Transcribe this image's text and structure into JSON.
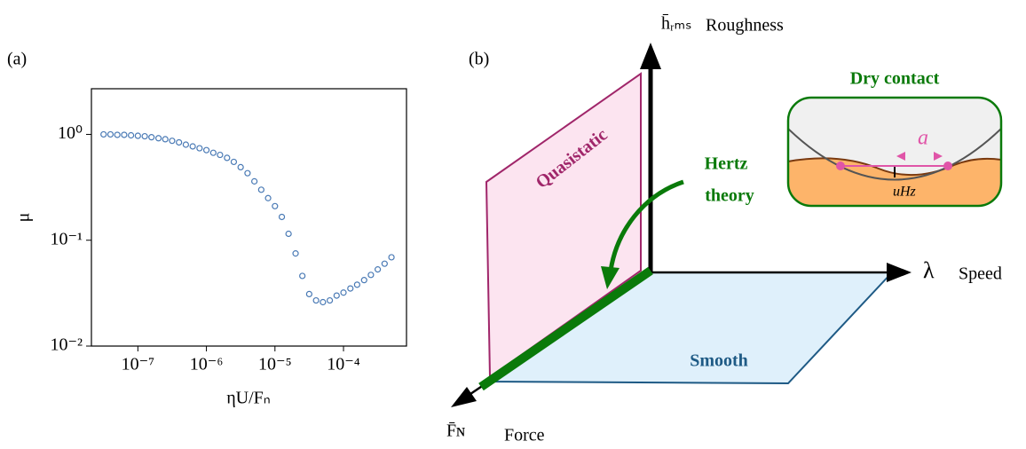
{
  "chart_data": {
    "type": "scatter",
    "panel_label": "(a)",
    "xlabel": "ηU/Fₙ",
    "ylabel": "μ",
    "xscale": "log",
    "yscale": "log",
    "color": "#4a7ab5",
    "xlim": [
      2.1e-08,
      0.00083
    ],
    "ylim": [
      0.01,
      2.7
    ],
    "xticks": [
      {
        "value": 1e-07,
        "label": "10⁻⁷"
      },
      {
        "value": 1e-06,
        "label": "10⁻⁶"
      },
      {
        "value": 1e-05,
        "label": "10⁻⁵"
      },
      {
        "value": 0.0001,
        "label": "10⁻⁴"
      }
    ],
    "yticks": [
      {
        "value": 0.01,
        "label": "10⁻²"
      },
      {
        "value": 0.1,
        "label": "10⁻¹"
      },
      {
        "value": 1,
        "label": "10⁰"
      }
    ],
    "x": [
      3.16e-08,
      3.98e-08,
      5.01e-08,
      6.31e-08,
      7.94e-08,
      1e-07,
      1.26e-07,
      1.58e-07,
      2e-07,
      2.51e-07,
      3.16e-07,
      3.98e-07,
      5.01e-07,
      6.31e-07,
      7.94e-07,
      1e-06,
      1.26e-06,
      1.58e-06,
      2e-06,
      2.51e-06,
      3.16e-06,
      3.98e-06,
      5.01e-06,
      6.31e-06,
      7.94e-06,
      1e-05,
      1.26e-05,
      1.58e-05,
      2e-05,
      2.51e-05,
      3.16e-05,
      3.98e-05,
      5.01e-05,
      6.31e-05,
      7.94e-05,
      0.0001,
      0.000126,
      0.000158,
      0.0002,
      0.000251,
      0.000316,
      0.000398,
      0.000501
    ],
    "values": [
      1.0,
      1.0,
      0.99,
      0.99,
      0.98,
      0.97,
      0.96,
      0.94,
      0.92,
      0.9,
      0.87,
      0.84,
      0.8,
      0.77,
      0.74,
      0.71,
      0.67,
      0.64,
      0.6,
      0.55,
      0.49,
      0.43,
      0.36,
      0.3,
      0.25,
      0.21,
      0.166,
      0.115,
      0.075,
      0.046,
      0.031,
      0.027,
      0.026,
      0.027,
      0.03,
      0.032,
      0.035,
      0.038,
      0.042,
      0.047,
      0.053,
      0.06,
      0.069
    ]
  },
  "diagram": {
    "panel_label": "(b)",
    "y_axis": "h̄ᵣₘₛ",
    "y_axis_name": "Roughness",
    "x_axis": "λ",
    "x_axis_name": "Speed",
    "z_axis": "F̄ɴ",
    "z_axis_name": "Force",
    "plane_1": "Quasistatic",
    "plane_2": "Smooth",
    "line_label": [
      "Hertz",
      "theory"
    ],
    "inset_title": "Dry contact",
    "inset_width": "a",
    "inset_depth": "uHz"
  }
}
